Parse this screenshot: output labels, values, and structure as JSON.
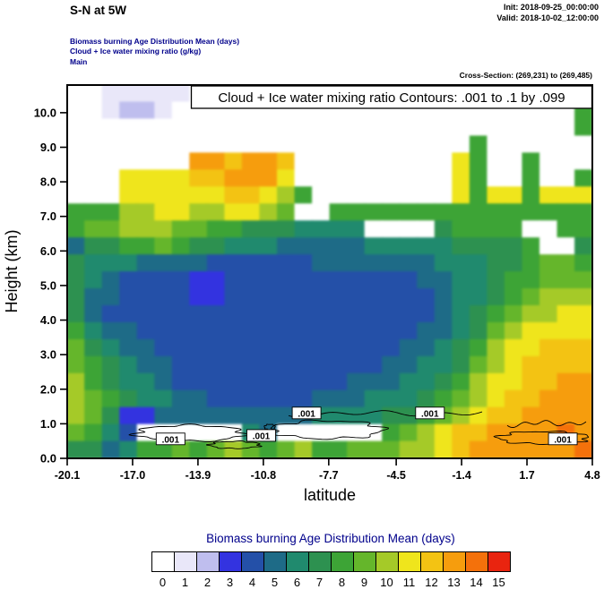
{
  "header": {
    "title": "S-N at 5W",
    "init": "Init: 2018-09-25_00:00:00",
    "valid": "Valid: 2018-10-02_12:00:00",
    "sub1": "Biomass burning Age Distribution Mean   (days)",
    "sub2": "Cloud + Ice water mixing ratio   (g/kg)",
    "sub3": "Main",
    "cross_section": "Cross-Section: (269,231) to (269,485)"
  },
  "plot": {
    "contour_note": "Cloud + Ice water mixing ratio Contours: .001 to .1 by .099",
    "xlabel": "latitude",
    "ylabel": "Height (km)"
  },
  "chart_data": {
    "type": "heatmap",
    "title": "Biomass burning Age Distribution Mean (days)",
    "xlabel": "latitude",
    "ylabel": "Height (km)",
    "units": "days",
    "x_range": [
      -20.1,
      4.8
    ],
    "y_range": [
      0,
      10.8
    ],
    "value_range": [
      0,
      15
    ],
    "x_ticks": [
      "-20.1",
      "-17.0",
      "-13.9",
      "-10.8",
      "-7.7",
      "-4.5",
      "-1.4",
      "1.7",
      "4.8"
    ],
    "y_ticks": [
      "0.0",
      "1.0",
      "2.0",
      "3.0",
      "4.0",
      "5.0",
      "6.0",
      "7.0",
      "8.0",
      "9.0",
      "10.0"
    ],
    "palette": [
      "#ffffff",
      "#e9e7f9",
      "#bfbeee",
      "#3333e0",
      "#2450a8",
      "#1e6b87",
      "#208a6e",
      "#2d9150",
      "#3da436",
      "#65b62b",
      "#a5ca28",
      "#efe51c",
      "#f3c313",
      "#f69d0d",
      "#f4710b",
      "#e9240f"
    ],
    "grid_note": "22 rows (top = 10.8 km down to 0 km) x 30 cols (lat -20.1 to 4.8); each hex digit = mean age in days (0-15)",
    "grid_rows_top_to_bottom": [
      "001111100000000000000000000000",
      "001221000000000000000000000008",
      "000000000000000000000000000008",
      "000000000000000000000008000000",
      "0000000ddcddc000000000b8008000",
      "000bbbbccdddb000000000b8008008",
      "000bbbbbbccba800000000b8bb8bbb",
      "888aabbaabba900888888888888888",
      "899aaa998877766660000788880088",
      "577889877666555556666677778007",
      "766655554444445555555666778998",
      "765444433444444444445566788999",
      "755444433444444444444566789aaa",
      "75444444444444444444456789aabb",
      "8655444444444444444455679abbbb",
      "976554444444444444455678abbccc",
      "987655444444444444556679abcccc",
      "a8766544444444445556678abbccdd",
      "a9876655444444555666789abccddd",
      "a973355555555566667789abccdddd",
      "98640000006500000089abccdddded",
      "775688989a989a88999aabcdddddde"
    ],
    "overlay_contours": {
      "variable": "Cloud + Ice water mixing ratio (g/kg)",
      "levels": ".001 to .1 by .099",
      "label": ".001",
      "label_positions": [
        [
          -15.2,
          0.55
        ],
        [
          -10.9,
          0.65
        ],
        [
          -8.75,
          1.3
        ],
        [
          -2.9,
          1.3
        ],
        [
          3.4,
          0.55
        ]
      ]
    }
  },
  "legend": {
    "title": "Biomass burning Age Distribution Mean  (days)",
    "tick_labels": [
      "0",
      "1",
      "2",
      "3",
      "4",
      "5",
      "6",
      "7",
      "8",
      "9",
      "10",
      "11",
      "12",
      "13",
      "14",
      "15"
    ]
  }
}
